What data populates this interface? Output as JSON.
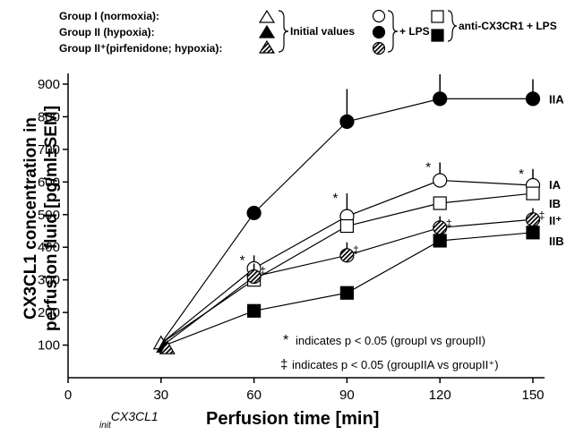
{
  "chart_data": {
    "type": "line",
    "xlabel": "Perfusion time [min]",
    "ylabel_line1": "CX3CL1 concentration in",
    "ylabel_line2": "perfusion fluid [pg/ml±SEM]",
    "x_ticks": [
      0,
      30,
      60,
      90,
      120,
      150
    ],
    "y_ticks": [
      100,
      200,
      300,
      400,
      500,
      600,
      700,
      800,
      900
    ],
    "xlim": [
      0,
      155
    ],
    "ylim": [
      0,
      950
    ],
    "init_label": "CX3CL1",
    "init_label_sub": "init",
    "legend": {
      "groups": [
        "Group I (normoxia):",
        "Group II (hypoxia):",
        "Group II⁺(pirfenidone; hypoxia):"
      ],
      "initial_values": "Initial values",
      "lps": "+ LPS",
      "anti": "anti-CX3CR1 + LPS"
    },
    "initial_markers": [
      {
        "marker": "triangle-open",
        "x": 30,
        "y": 105
      },
      {
        "marker": "triangle-filled",
        "x": 31,
        "y": 95
      },
      {
        "marker": "triangle-hatched",
        "x": 32,
        "y": 90
      }
    ],
    "series": [
      {
        "name": "IIA",
        "marker": "circle-filled",
        "x": [
          30,
          60,
          90,
          120,
          150
        ],
        "y": [
          105,
          505,
          785,
          855,
          855
        ],
        "err": [
          0,
          0,
          100,
          75,
          60
        ],
        "sig": [
          "",
          "",
          "",
          "",
          ""
        ]
      },
      {
        "name": "IA",
        "marker": "circle-open",
        "x": [
          30,
          60,
          90,
          120,
          150
        ],
        "y": [
          105,
          335,
          495,
          605,
          590
        ],
        "err": [
          0,
          40,
          70,
          55,
          50
        ],
        "sig": [
          "",
          "*",
          "*",
          "*",
          "*"
        ]
      },
      {
        "name": "IB",
        "marker": "square-open",
        "x": [
          30,
          60,
          90,
          120,
          150
        ],
        "y": [
          105,
          300,
          465,
          535,
          565
        ],
        "err": [
          0,
          0,
          0,
          0,
          0
        ],
        "sig": [
          "",
          "",
          "",
          "",
          ""
        ]
      },
      {
        "name": "II⁺",
        "marker": "circle-hatched",
        "x": [
          30,
          60,
          90,
          120,
          150
        ],
        "y": [
          95,
          310,
          375,
          460,
          485
        ],
        "err": [
          0,
          40,
          40,
          35,
          35
        ],
        "sig": [
          "",
          "‡",
          "‡",
          "‡",
          "‡"
        ]
      },
      {
        "name": "IIB",
        "marker": "square-filled",
        "x": [
          30,
          60,
          90,
          120,
          150
        ],
        "y": [
          95,
          205,
          260,
          420,
          445
        ],
        "err": [
          0,
          0,
          0,
          0,
          0
        ],
        "sig": [
          "",
          "",
          "",
          "",
          ""
        ]
      }
    ],
    "notes": [
      {
        "symbol": "*",
        "text": "indicates p < 0.05 (groupI vs groupII)"
      },
      {
        "symbol": "‡",
        "text": "indicates p < 0.05 (groupIIA vs groupII⁺)"
      }
    ]
  }
}
